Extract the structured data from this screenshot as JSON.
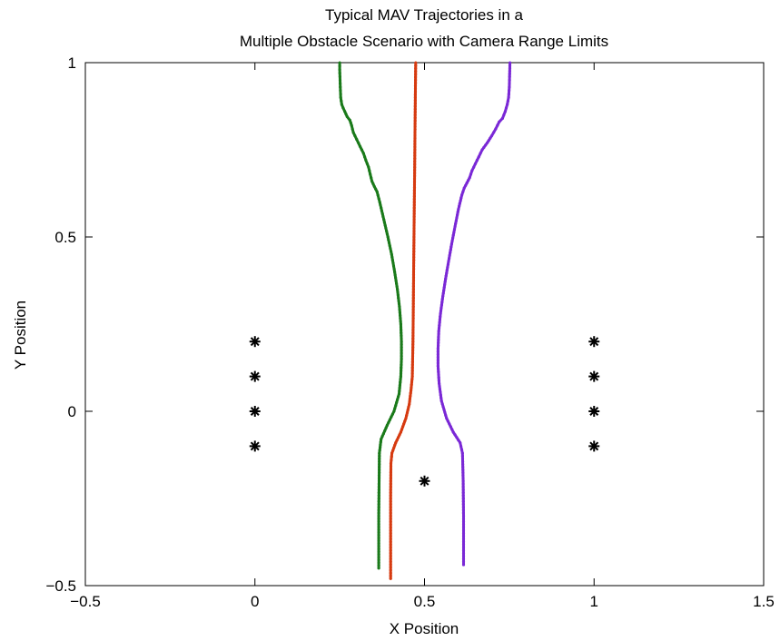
{
  "chart_data": {
    "type": "scatter",
    "title": [
      "Typical MAV Trajectories in a",
      "Multiple Obstacle Scenario with Camera Range Limits"
    ],
    "xlabel": "X Position",
    "ylabel": "Y Position",
    "xlim": [
      -0.5,
      1.5
    ],
    "ylim": [
      -0.5,
      1
    ],
    "xticks": [
      -0.5,
      0,
      0.5,
      1,
      1.5
    ],
    "xtick_labels": [
      "−0.5",
      "0",
      "0.5",
      "1",
      "1.5"
    ],
    "yticks": [
      -0.5,
      0,
      0.5,
      1
    ],
    "ytick_labels": [
      "−0.5",
      "0",
      "0.5",
      "1"
    ],
    "grid": false,
    "obstacles": {
      "marker": "asterisk",
      "color": "#000000",
      "points": [
        [
          0,
          0.2
        ],
        [
          0,
          0.1
        ],
        [
          0,
          0
        ],
        [
          0,
          -0.1
        ],
        [
          1,
          0.2
        ],
        [
          1,
          0.1
        ],
        [
          1,
          0
        ],
        [
          1,
          -0.1
        ],
        [
          0.5,
          -0.2
        ]
      ]
    },
    "series": [
      {
        "color": "#1a7a1a",
        "points": [
          [
            0.365,
            -0.45
          ],
          [
            0.365,
            -0.3
          ],
          [
            0.366,
            -0.2
          ],
          [
            0.367,
            -0.12
          ],
          [
            0.372,
            -0.08
          ],
          [
            0.39,
            -0.04
          ],
          [
            0.41,
            0.0
          ],
          [
            0.425,
            0.05
          ],
          [
            0.43,
            0.1
          ],
          [
            0.432,
            0.15
          ],
          [
            0.432,
            0.2
          ],
          [
            0.43,
            0.25
          ],
          [
            0.426,
            0.3
          ],
          [
            0.42,
            0.35
          ],
          [
            0.412,
            0.4
          ],
          [
            0.403,
            0.45
          ],
          [
            0.392,
            0.5
          ],
          [
            0.38,
            0.55
          ],
          [
            0.368,
            0.6
          ],
          [
            0.36,
            0.63
          ],
          [
            0.352,
            0.645
          ],
          [
            0.345,
            0.66
          ],
          [
            0.34,
            0.68
          ],
          [
            0.335,
            0.7
          ],
          [
            0.327,
            0.72
          ],
          [
            0.32,
            0.74
          ],
          [
            0.31,
            0.76
          ],
          [
            0.3,
            0.78
          ],
          [
            0.29,
            0.8
          ],
          [
            0.285,
            0.82
          ],
          [
            0.28,
            0.835
          ],
          [
            0.272,
            0.845
          ],
          [
            0.265,
            0.86
          ],
          [
            0.26,
            0.87
          ],
          [
            0.256,
            0.88
          ],
          [
            0.253,
            0.9
          ],
          [
            0.252,
            0.92
          ],
          [
            0.251,
            0.95
          ],
          [
            0.25,
            0.98
          ],
          [
            0.25,
            1.0
          ]
        ]
      },
      {
        "color": "#d63a10",
        "points": [
          [
            0.4,
            -0.48
          ],
          [
            0.4,
            -0.35
          ],
          [
            0.4,
            -0.25
          ],
          [
            0.401,
            -0.15
          ],
          [
            0.404,
            -0.12
          ],
          [
            0.415,
            -0.09
          ],
          [
            0.43,
            -0.06
          ],
          [
            0.445,
            -0.02
          ],
          [
            0.455,
            0.02
          ],
          [
            0.46,
            0.06
          ],
          [
            0.464,
            0.1
          ],
          [
            0.466,
            0.2
          ],
          [
            0.467,
            0.3
          ],
          [
            0.468,
            0.4
          ],
          [
            0.469,
            0.5
          ],
          [
            0.47,
            0.6
          ],
          [
            0.471,
            0.7
          ],
          [
            0.472,
            0.8
          ],
          [
            0.473,
            0.9
          ],
          [
            0.474,
            1.0
          ]
        ]
      },
      {
        "color": "#7a28d6",
        "points": [
          [
            0.615,
            -0.44
          ],
          [
            0.615,
            -0.3
          ],
          [
            0.614,
            -0.2
          ],
          [
            0.612,
            -0.12
          ],
          [
            0.605,
            -0.09
          ],
          [
            0.585,
            -0.06
          ],
          [
            0.565,
            -0.02
          ],
          [
            0.55,
            0.03
          ],
          [
            0.543,
            0.08
          ],
          [
            0.54,
            0.13
          ],
          [
            0.54,
            0.18
          ],
          [
            0.542,
            0.23
          ],
          [
            0.547,
            0.28
          ],
          [
            0.554,
            0.33
          ],
          [
            0.562,
            0.38
          ],
          [
            0.571,
            0.43
          ],
          [
            0.58,
            0.48
          ],
          [
            0.59,
            0.53
          ],
          [
            0.6,
            0.58
          ],
          [
            0.61,
            0.62
          ],
          [
            0.617,
            0.64
          ],
          [
            0.625,
            0.655
          ],
          [
            0.633,
            0.67
          ],
          [
            0.64,
            0.69
          ],
          [
            0.65,
            0.71
          ],
          [
            0.66,
            0.73
          ],
          [
            0.67,
            0.75
          ],
          [
            0.685,
            0.77
          ],
          [
            0.698,
            0.79
          ],
          [
            0.71,
            0.81
          ],
          [
            0.72,
            0.83
          ],
          [
            0.73,
            0.84
          ],
          [
            0.738,
            0.86
          ],
          [
            0.744,
            0.88
          ],
          [
            0.748,
            0.9
          ],
          [
            0.75,
            0.93
          ],
          [
            0.751,
            0.96
          ],
          [
            0.752,
            1.0
          ]
        ]
      }
    ]
  }
}
